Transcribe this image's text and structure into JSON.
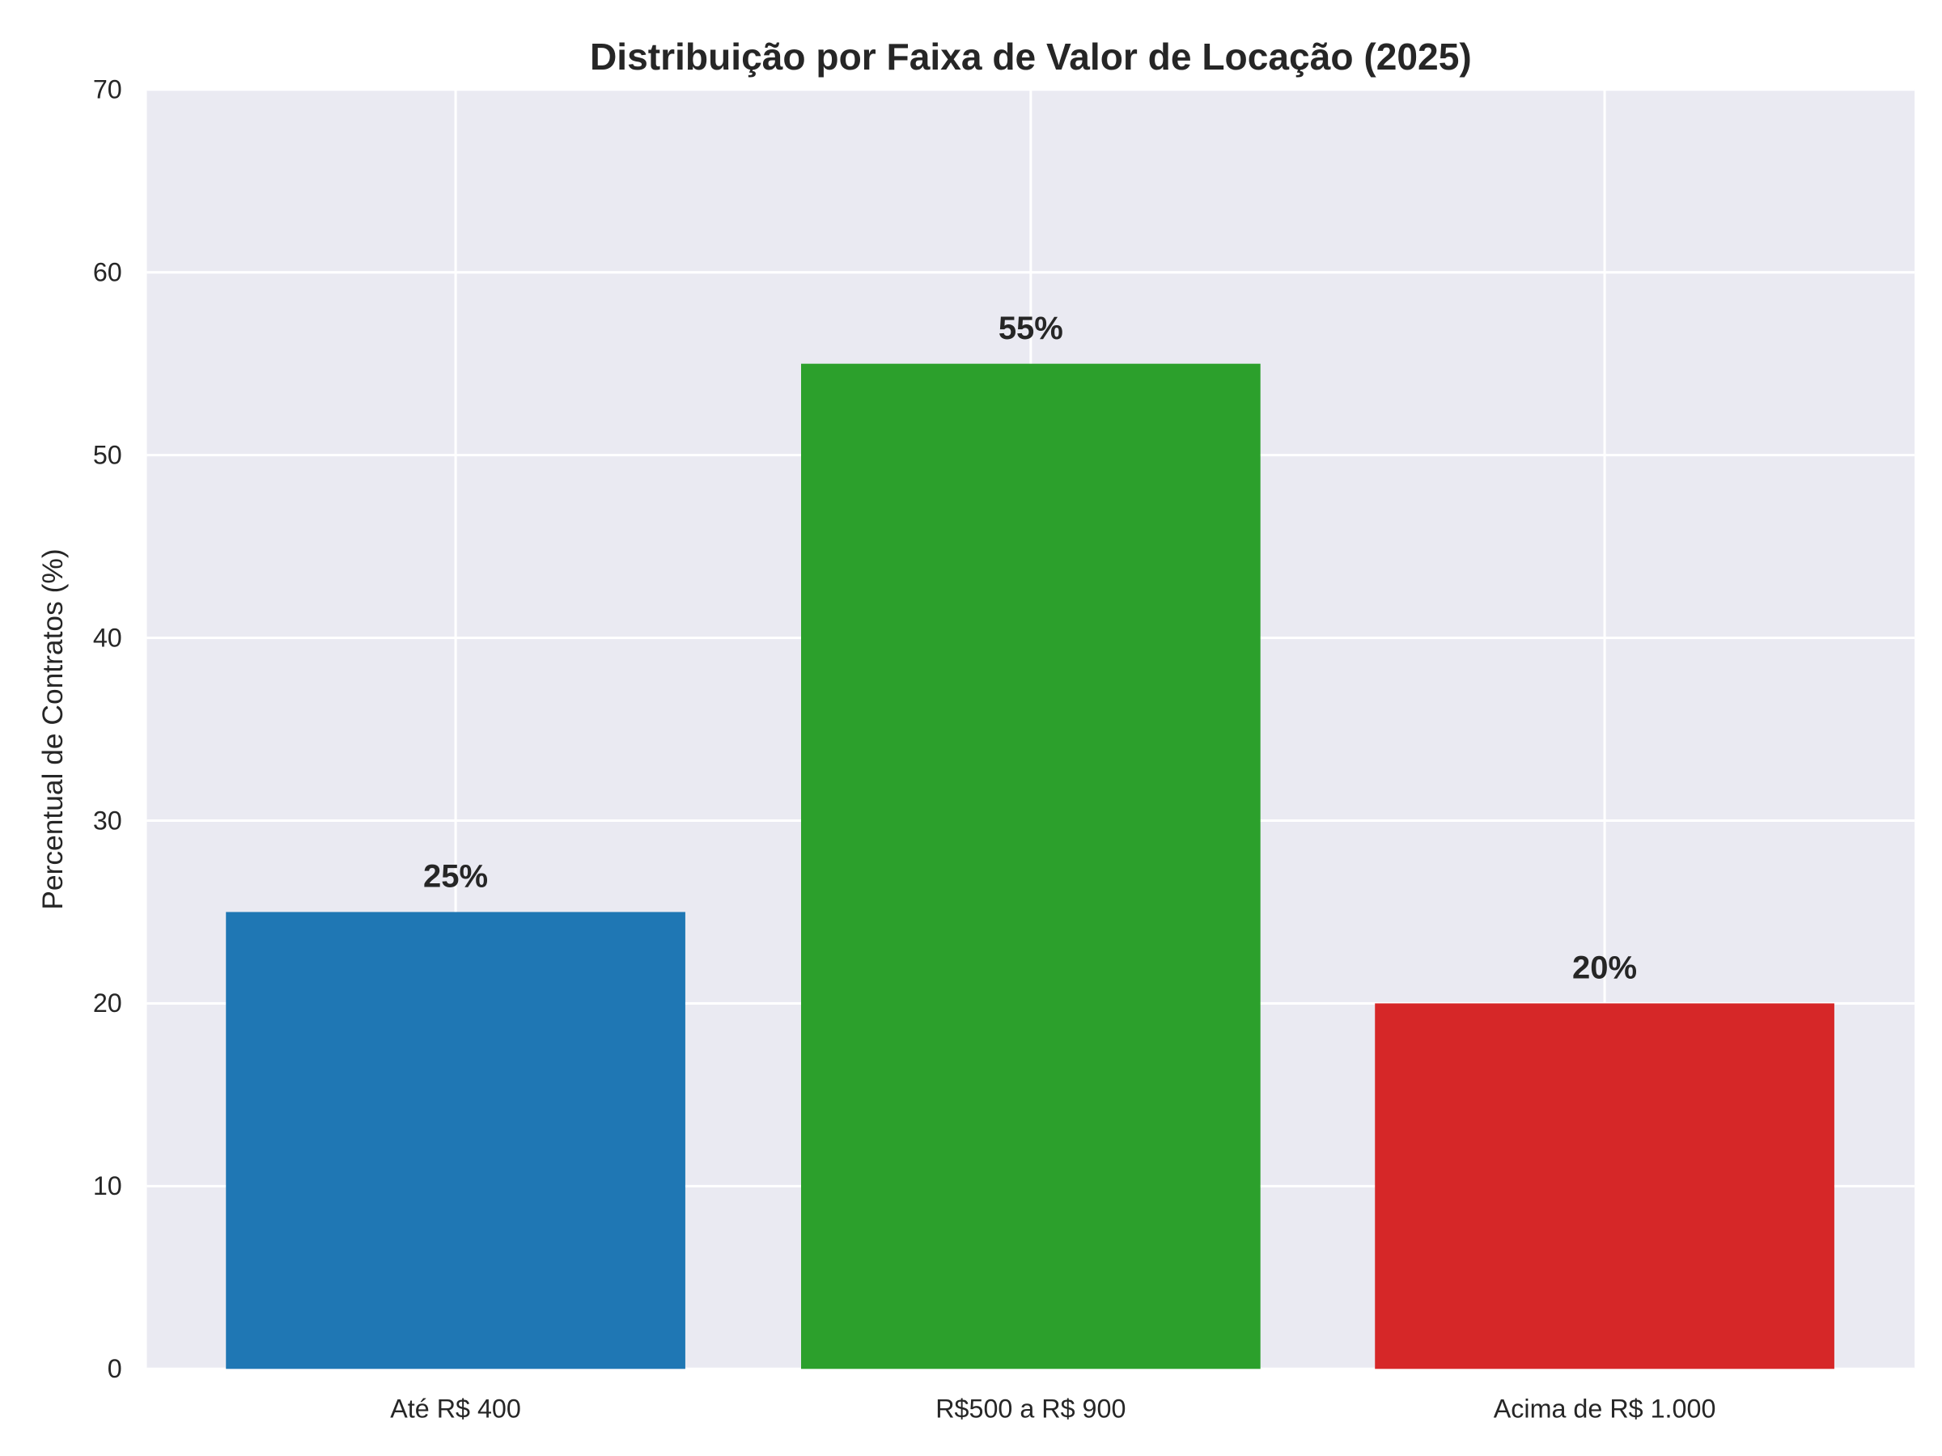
{
  "chart_data": {
    "type": "bar",
    "title": "Distribuição por Faixa de Valor de Locação (2025)",
    "xlabel": "",
    "ylabel": "Percentual de Contratos (%)",
    "categories": [
      "Até R$ 400",
      "R$500 a R$ 900",
      "Acima de R$ 1.000"
    ],
    "values": [
      25,
      55,
      20
    ],
    "data_labels": [
      "25%",
      "55%",
      "20%"
    ],
    "colors": [
      "#1f77b4",
      "#2ca02c",
      "#d62728"
    ],
    "ylim": [
      0,
      70
    ],
    "yticks": [
      0,
      10,
      20,
      30,
      40,
      50,
      60,
      70
    ],
    "grid": true,
    "background": "#eaeaf2"
  }
}
